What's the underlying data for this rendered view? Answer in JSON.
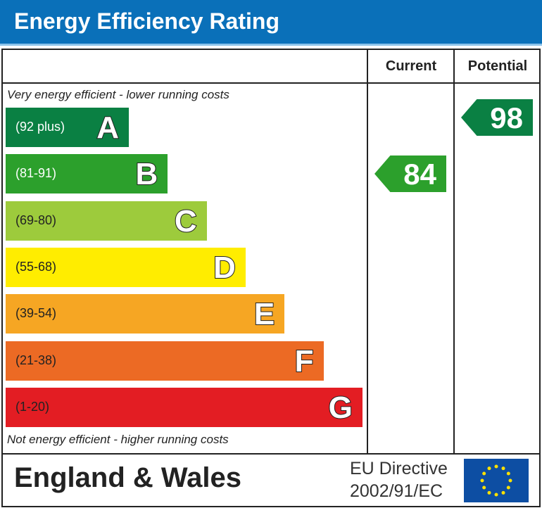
{
  "title": "Energy Efficiency Rating",
  "chart_data": {
    "type": "bar",
    "title": "Energy Efficiency Rating",
    "columns": [
      "Current",
      "Potential"
    ],
    "top_note": "Very energy efficient - lower running costs",
    "bottom_note": "Not energy efficient - higher running costs",
    "bands": [
      {
        "letter": "A",
        "range": "(92 plus)",
        "color": "#0a8043"
      },
      {
        "letter": "B",
        "range": "(81-91)",
        "color": "#2ca02c"
      },
      {
        "letter": "C",
        "range": "(69-80)",
        "color": "#9dcb3c"
      },
      {
        "letter": "D",
        "range": "(55-68)",
        "color": "#ffed00"
      },
      {
        "letter": "E",
        "range": "(39-54)",
        "color": "#f6a623"
      },
      {
        "letter": "F",
        "range": "(21-38)",
        "color": "#ec6a24"
      },
      {
        "letter": "G",
        "range": "(1-20)",
        "color": "#e31d23"
      }
    ],
    "current": {
      "value": 84,
      "band": "B",
      "color": "#2ca02c"
    },
    "potential": {
      "value": 98,
      "band": "A",
      "color": "#0a8043"
    }
  },
  "footer": {
    "region": "England & Wales",
    "directive_line1": "EU Directive",
    "directive_line2": "2002/91/EC"
  }
}
